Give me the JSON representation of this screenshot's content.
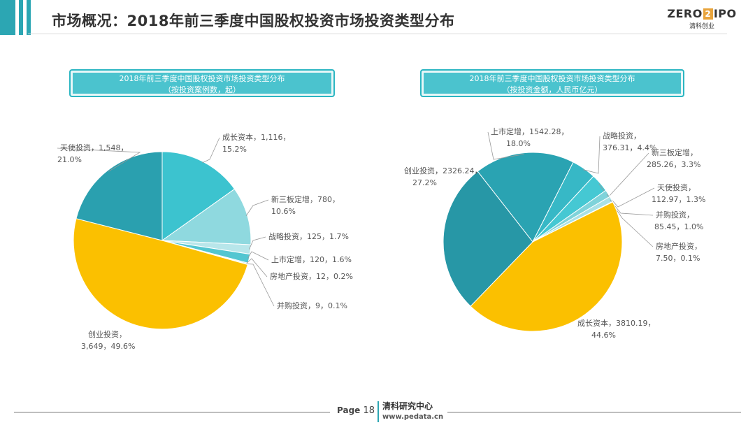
{
  "header": {
    "title": "市场概况：2018年前三季度中国股权投资市场投资类型分布",
    "accent_color": "#2ca6b3"
  },
  "logo": {
    "main_left": "ZERO",
    "main_box": "2",
    "main_right": "IPO",
    "sub": "清科创业"
  },
  "footer": {
    "page_label": "Page",
    "page_number": "18",
    "brand": "清科研究中心",
    "url": "www.pedata.cn"
  },
  "chart_data": [
    {
      "type": "pie",
      "title_line1": "2018年前三季度中国股权投资市场投资类型分布",
      "title_line2": "（按投资案例数，起）",
      "start": "12-o'clock",
      "direction": "clockwise",
      "slices": [
        {
          "name": "成长资本",
          "value": 1116,
          "percent": "15.2%",
          "color": "#3cc3cf",
          "label_line1": "成长资本，1,116，",
          "label_line2": "15.2%"
        },
        {
          "name": "新三板定增",
          "value": 780,
          "percent": "10.6%",
          "color": "#8fd9df",
          "label_line1": "新三板定增，780，",
          "label_line2": "10.6%"
        },
        {
          "name": "战略投资",
          "value": 125,
          "percent": "1.7%",
          "color": "#b8e6ea",
          "label_line1": "战略投资，125，1.7%",
          "label_line2": ""
        },
        {
          "name": "上市定增",
          "value": 120,
          "percent": "1.6%",
          "color": "#52c6d1",
          "label_line1": "上市定增，120，1.6%",
          "label_line2": ""
        },
        {
          "name": "房地产投资",
          "value": 12,
          "percent": "0.2%",
          "color": "#7fd0d8",
          "label_line1": "房地产投资，12，0.2%",
          "label_line2": ""
        },
        {
          "name": "并购投资",
          "value": 9,
          "percent": "0.1%",
          "color": "#a6dde2",
          "label_line1": "并购投资，9，0.1%",
          "label_line2": ""
        },
        {
          "name": "创业投资",
          "value": 3649,
          "percent": "49.6%",
          "color": "#fbc000",
          "label_line1": "创业投资，",
          "label_line2": "3,649，49.6%"
        },
        {
          "name": "天使投资",
          "value": 1548,
          "percent": "21.0%",
          "color": "#2aa0af",
          "label_line1": "天使投资，1,548，",
          "label_line2": "21.0%"
        }
      ]
    },
    {
      "type": "pie",
      "title_line1": "2018年前三季度中国股权投资市场投资类型分布",
      "title_line2": "（按投资金额，人民币亿元）",
      "start": "near 11-o'clock",
      "direction": "clockwise",
      "slices": [
        {
          "name": "上市定增",
          "value": 1542.28,
          "percent": "18.0%",
          "color": "#2aa3b2",
          "label_line1": "上市定增，1542.28，",
          "label_line2": "18.0%"
        },
        {
          "name": "战略投资",
          "value": 376.31,
          "percent": "4.4%",
          "color": "#37b8c6",
          "label_line1": "战略投资，",
          "label_line2": "376.31，4.4%"
        },
        {
          "name": "新三板定增",
          "value": 285.26,
          "percent": "3.3%",
          "color": "#45c8d3",
          "label_line1": "新三板定增，",
          "label_line2": "285.26，3.3%"
        },
        {
          "name": "天使投资",
          "value": 112.97,
          "percent": "1.3%",
          "color": "#7fd3da",
          "label_line1": "天使投资，",
          "label_line2": "112.97，1.3%"
        },
        {
          "name": "并购投资",
          "value": 85.45,
          "percent": "1.0%",
          "color": "#a9e1e6",
          "label_line1": "并购投资，",
          "label_line2": "85.45，1.0%"
        },
        {
          "name": "房地产投资",
          "value": 7.5,
          "percent": "0.1%",
          "color": "#c7ecef",
          "label_line1": "房地产投资，",
          "label_line2": "7.50，0.1%"
        },
        {
          "name": "成长资本",
          "value": 3810.19,
          "percent": "44.6%",
          "color": "#fbc000",
          "label_line1": "成长资本，3810.19，",
          "label_line2": "44.6%"
        },
        {
          "name": "创业投资",
          "value": 2326.24,
          "percent": "27.2%",
          "color": "#2797a6",
          "label_line1": "创业投资，2326.24，",
          "label_line2": "27.2%"
        }
      ]
    }
  ]
}
